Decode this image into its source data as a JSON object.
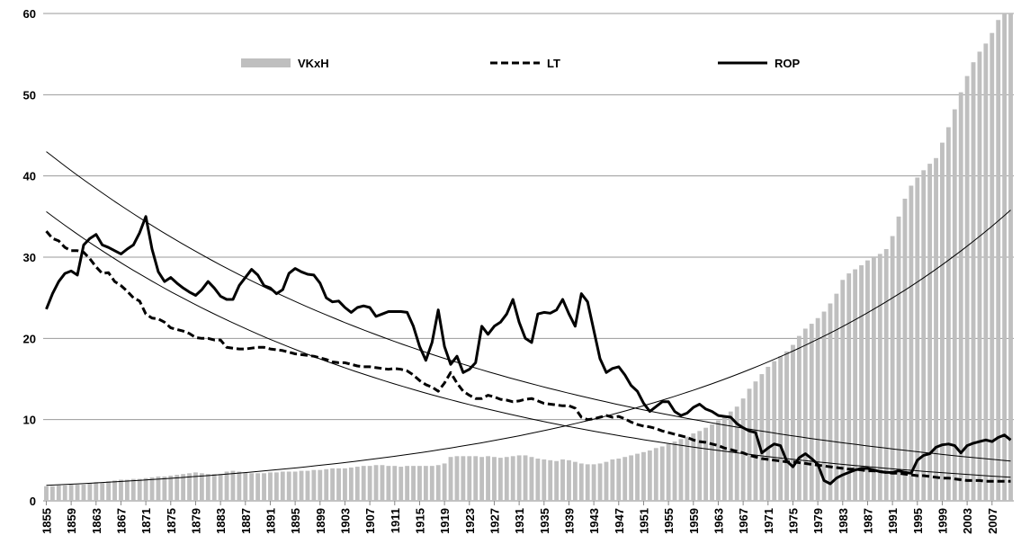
{
  "chart_data": {
    "type": "bar-line",
    "x": [
      1855,
      1856,
      1857,
      1858,
      1859,
      1860,
      1861,
      1862,
      1863,
      1864,
      1865,
      1866,
      1867,
      1868,
      1869,
      1870,
      1871,
      1872,
      1873,
      1874,
      1875,
      1876,
      1877,
      1878,
      1879,
      1880,
      1881,
      1882,
      1883,
      1884,
      1885,
      1886,
      1887,
      1888,
      1889,
      1890,
      1891,
      1892,
      1893,
      1894,
      1895,
      1896,
      1897,
      1898,
      1899,
      1900,
      1901,
      1902,
      1903,
      1904,
      1905,
      1906,
      1907,
      1908,
      1909,
      1910,
      1911,
      1912,
      1913,
      1914,
      1915,
      1916,
      1917,
      1918,
      1919,
      1920,
      1921,
      1922,
      1923,
      1924,
      1925,
      1926,
      1927,
      1928,
      1929,
      1930,
      1931,
      1932,
      1933,
      1934,
      1935,
      1936,
      1937,
      1938,
      1939,
      1940,
      1941,
      1942,
      1943,
      1944,
      1945,
      1946,
      1947,
      1948,
      1949,
      1950,
      1951,
      1952,
      1953,
      1954,
      1955,
      1956,
      1957,
      1958,
      1959,
      1960,
      1961,
      1962,
      1963,
      1964,
      1965,
      1966,
      1967,
      1968,
      1969,
      1970,
      1971,
      1972,
      1973,
      1974,
      1975,
      1976,
      1977,
      1978,
      1979,
      1980,
      1981,
      1982,
      1983,
      1984,
      1985,
      1986,
      1987,
      1988,
      1989,
      1990,
      1991,
      1992,
      1993,
      1994,
      1995,
      1996,
      1997,
      1998,
      1999,
      2000,
      2001,
      2002,
      2003,
      2004,
      2005,
      2006,
      2007,
      2008,
      2009,
      2010
    ],
    "xlim": [
      1854.5,
      2010.5
    ],
    "xticks": [
      1855,
      1859,
      1863,
      1867,
      1871,
      1875,
      1879,
      1883,
      1887,
      1891,
      1895,
      1899,
      1903,
      1907,
      1911,
      1915,
      1919,
      1923,
      1927,
      1931,
      1935,
      1939,
      1943,
      1947,
      1951,
      1955,
      1959,
      1963,
      1967,
      1971,
      1975,
      1979,
      1983,
      1987,
      1991,
      1995,
      1999,
      2003,
      2007
    ],
    "ylim": [
      0,
      60
    ],
    "yticks": [
      0,
      10,
      20,
      30,
      40,
      50,
      60
    ],
    "grid": true,
    "series": [
      {
        "name": "VKxH",
        "kind": "bar",
        "color": "#bfbfbf",
        "values": [
          1.8,
          1.8,
          1.9,
          1.9,
          2.0,
          2.0,
          2.0,
          2.2,
          2.3,
          2.2,
          2.4,
          2.5,
          2.6,
          2.6,
          2.7,
          2.7,
          2.8,
          2.9,
          3.0,
          3.0,
          3.1,
          3.2,
          3.3,
          3.4,
          3.5,
          3.4,
          3.3,
          3.3,
          3.3,
          3.6,
          3.7,
          3.6,
          3.5,
          3.4,
          3.4,
          3.4,
          3.5,
          3.5,
          3.6,
          3.6,
          3.6,
          3.7,
          3.7,
          3.8,
          3.8,
          3.9,
          4.0,
          4.0,
          4.0,
          4.1,
          4.2,
          4.3,
          4.3,
          4.4,
          4.4,
          4.3,
          4.3,
          4.2,
          4.3,
          4.3,
          4.3,
          4.3,
          4.3,
          4.4,
          4.6,
          5.4,
          5.5,
          5.5,
          5.5,
          5.5,
          5.4,
          5.5,
          5.4,
          5.3,
          5.4,
          5.5,
          5.6,
          5.6,
          5.4,
          5.2,
          5.1,
          5.0,
          4.9,
          5.1,
          5.0,
          4.8,
          4.6,
          4.5,
          4.5,
          4.6,
          4.8,
          5.1,
          5.2,
          5.4,
          5.6,
          5.8,
          6.0,
          6.2,
          6.5,
          6.7,
          7.0,
          7.3,
          7.6,
          7.9,
          8.3,
          8.6,
          9.0,
          9.4,
          9.9,
          10.4,
          11.0,
          11.6,
          12.6,
          13.8,
          14.7,
          15.6,
          16.5,
          17.2,
          17.8,
          18.4,
          19.2,
          20.3,
          21.2,
          21.8,
          22.5,
          23.3,
          24.3,
          25.5,
          27.2,
          28.0,
          28.5,
          29.0,
          29.6,
          30.0,
          30.4,
          31.0,
          32.6,
          35.0,
          37.2,
          38.8,
          39.8,
          40.7,
          41.5,
          42.2,
          44.1,
          46.0,
          48.2,
          50.3,
          52.3,
          54.0,
          55.3,
          56.3,
          57.6,
          59.2,
          60.0,
          60.0
        ]
      },
      {
        "name": "LT",
        "kind": "line",
        "dashed": true,
        "color": "#000000",
        "values": [
          33.2,
          32.3,
          32.0,
          31.2,
          30.8,
          30.8,
          30.6,
          29.8,
          28.8,
          28.0,
          28.1,
          27.0,
          26.5,
          25.8,
          25.0,
          24.6,
          23.0,
          22.5,
          22.4,
          22.0,
          21.3,
          21.1,
          20.9,
          20.6,
          20.1,
          20.0,
          20.0,
          19.8,
          19.8,
          18.9,
          18.8,
          18.7,
          18.7,
          18.8,
          18.9,
          18.9,
          18.7,
          18.6,
          18.5,
          18.3,
          18.1,
          18.0,
          17.9,
          17.8,
          17.6,
          17.4,
          17.1,
          17.0,
          17.0,
          16.8,
          16.6,
          16.5,
          16.5,
          16.4,
          16.3,
          16.2,
          16.3,
          16.2,
          16.0,
          15.5,
          14.8,
          14.3,
          14.0,
          13.5,
          14.5,
          15.8,
          14.5,
          13.5,
          13.0,
          12.6,
          12.6,
          13.0,
          12.8,
          12.5,
          12.4,
          12.2,
          12.3,
          12.5,
          12.6,
          12.3,
          12.0,
          11.9,
          11.8,
          11.7,
          11.7,
          11.4,
          10.3,
          10.0,
          10.1,
          10.3,
          10.5,
          10.3,
          10.4,
          10.1,
          9.7,
          9.4,
          9.2,
          9.1,
          8.9,
          8.6,
          8.4,
          8.2,
          8.0,
          7.8,
          7.5,
          7.3,
          7.2,
          7.0,
          6.8,
          6.5,
          6.3,
          6.1,
          5.9,
          5.6,
          5.4,
          5.2,
          5.1,
          5.0,
          4.9,
          4.8,
          4.8,
          4.7,
          4.6,
          4.5,
          4.4,
          4.3,
          4.2,
          4.1,
          4.0,
          3.9,
          3.9,
          3.8,
          3.7,
          3.7,
          3.6,
          3.5,
          3.4,
          3.4,
          3.3,
          3.2,
          3.1,
          3.1,
          3.0,
          2.9,
          2.8,
          2.8,
          2.7,
          2.6,
          2.5,
          2.5,
          2.5,
          2.4,
          2.4,
          2.4,
          2.4,
          2.4
        ]
      },
      {
        "name": "ROP",
        "kind": "line",
        "dashed": false,
        "color": "#000000",
        "values": [
          23.6,
          25.5,
          27.0,
          28.0,
          28.3,
          27.8,
          31.5,
          32.3,
          32.8,
          31.5,
          31.2,
          30.8,
          30.4,
          31.0,
          31.5,
          33.0,
          35.0,
          31.0,
          28.2,
          27.0,
          27.5,
          26.8,
          26.2,
          25.7,
          25.3,
          26.0,
          27.0,
          26.2,
          25.2,
          24.8,
          24.8,
          26.5,
          27.5,
          28.5,
          27.8,
          26.5,
          26.2,
          25.5,
          26.0,
          28.0,
          28.6,
          28.2,
          27.9,
          27.8,
          26.8,
          25.0,
          24.5,
          24.6,
          23.8,
          23.2,
          23.8,
          24.0,
          23.8,
          22.7,
          23.0,
          23.3,
          23.3,
          23.3,
          23.2,
          21.5,
          19.0,
          17.3,
          19.5,
          23.5,
          19.0,
          16.8,
          17.8,
          15.8,
          16.2,
          17.0,
          21.5,
          20.5,
          21.5,
          22.0,
          23.0,
          24.8,
          22.0,
          20.0,
          19.5,
          23.0,
          23.2,
          23.1,
          23.5,
          24.8,
          23.0,
          21.5,
          25.5,
          24.5,
          21.0,
          17.5,
          15.8,
          16.3,
          16.5,
          15.5,
          14.2,
          13.5,
          12.0,
          11.0,
          11.6,
          12.2,
          12.2,
          11.0,
          10.5,
          10.8,
          11.5,
          11.9,
          11.3,
          11.0,
          10.5,
          10.4,
          10.3,
          9.5,
          9.0,
          8.6,
          8.4,
          5.9,
          6.5,
          7.0,
          6.8,
          4.9,
          4.2,
          5.3,
          5.8,
          5.2,
          4.5,
          2.5,
          2.1,
          2.8,
          3.2,
          3.5,
          3.8,
          4.0,
          4.0,
          3.8,
          3.6,
          3.5,
          3.5,
          3.7,
          3.5,
          3.4,
          5.0,
          5.6,
          5.8,
          6.6,
          6.9,
          7.0,
          6.8,
          5.9,
          6.8,
          7.1,
          7.3,
          7.5,
          7.3,
          7.8,
          8.1,
          7.5
        ]
      }
    ],
    "trendlines": [
      {
        "color": "#000000",
        "x": [
          1855,
          2010
        ],
        "values": [
          43,
          4.9
        ]
      },
      {
        "color": "#000000",
        "x": [
          1855,
          2010
        ],
        "values": [
          35.6,
          2.9
        ]
      },
      {
        "color": "#000000",
        "x": [
          1855,
          2010
        ],
        "values": [
          1.9,
          35.8
        ]
      }
    ],
    "legend": "top"
  }
}
